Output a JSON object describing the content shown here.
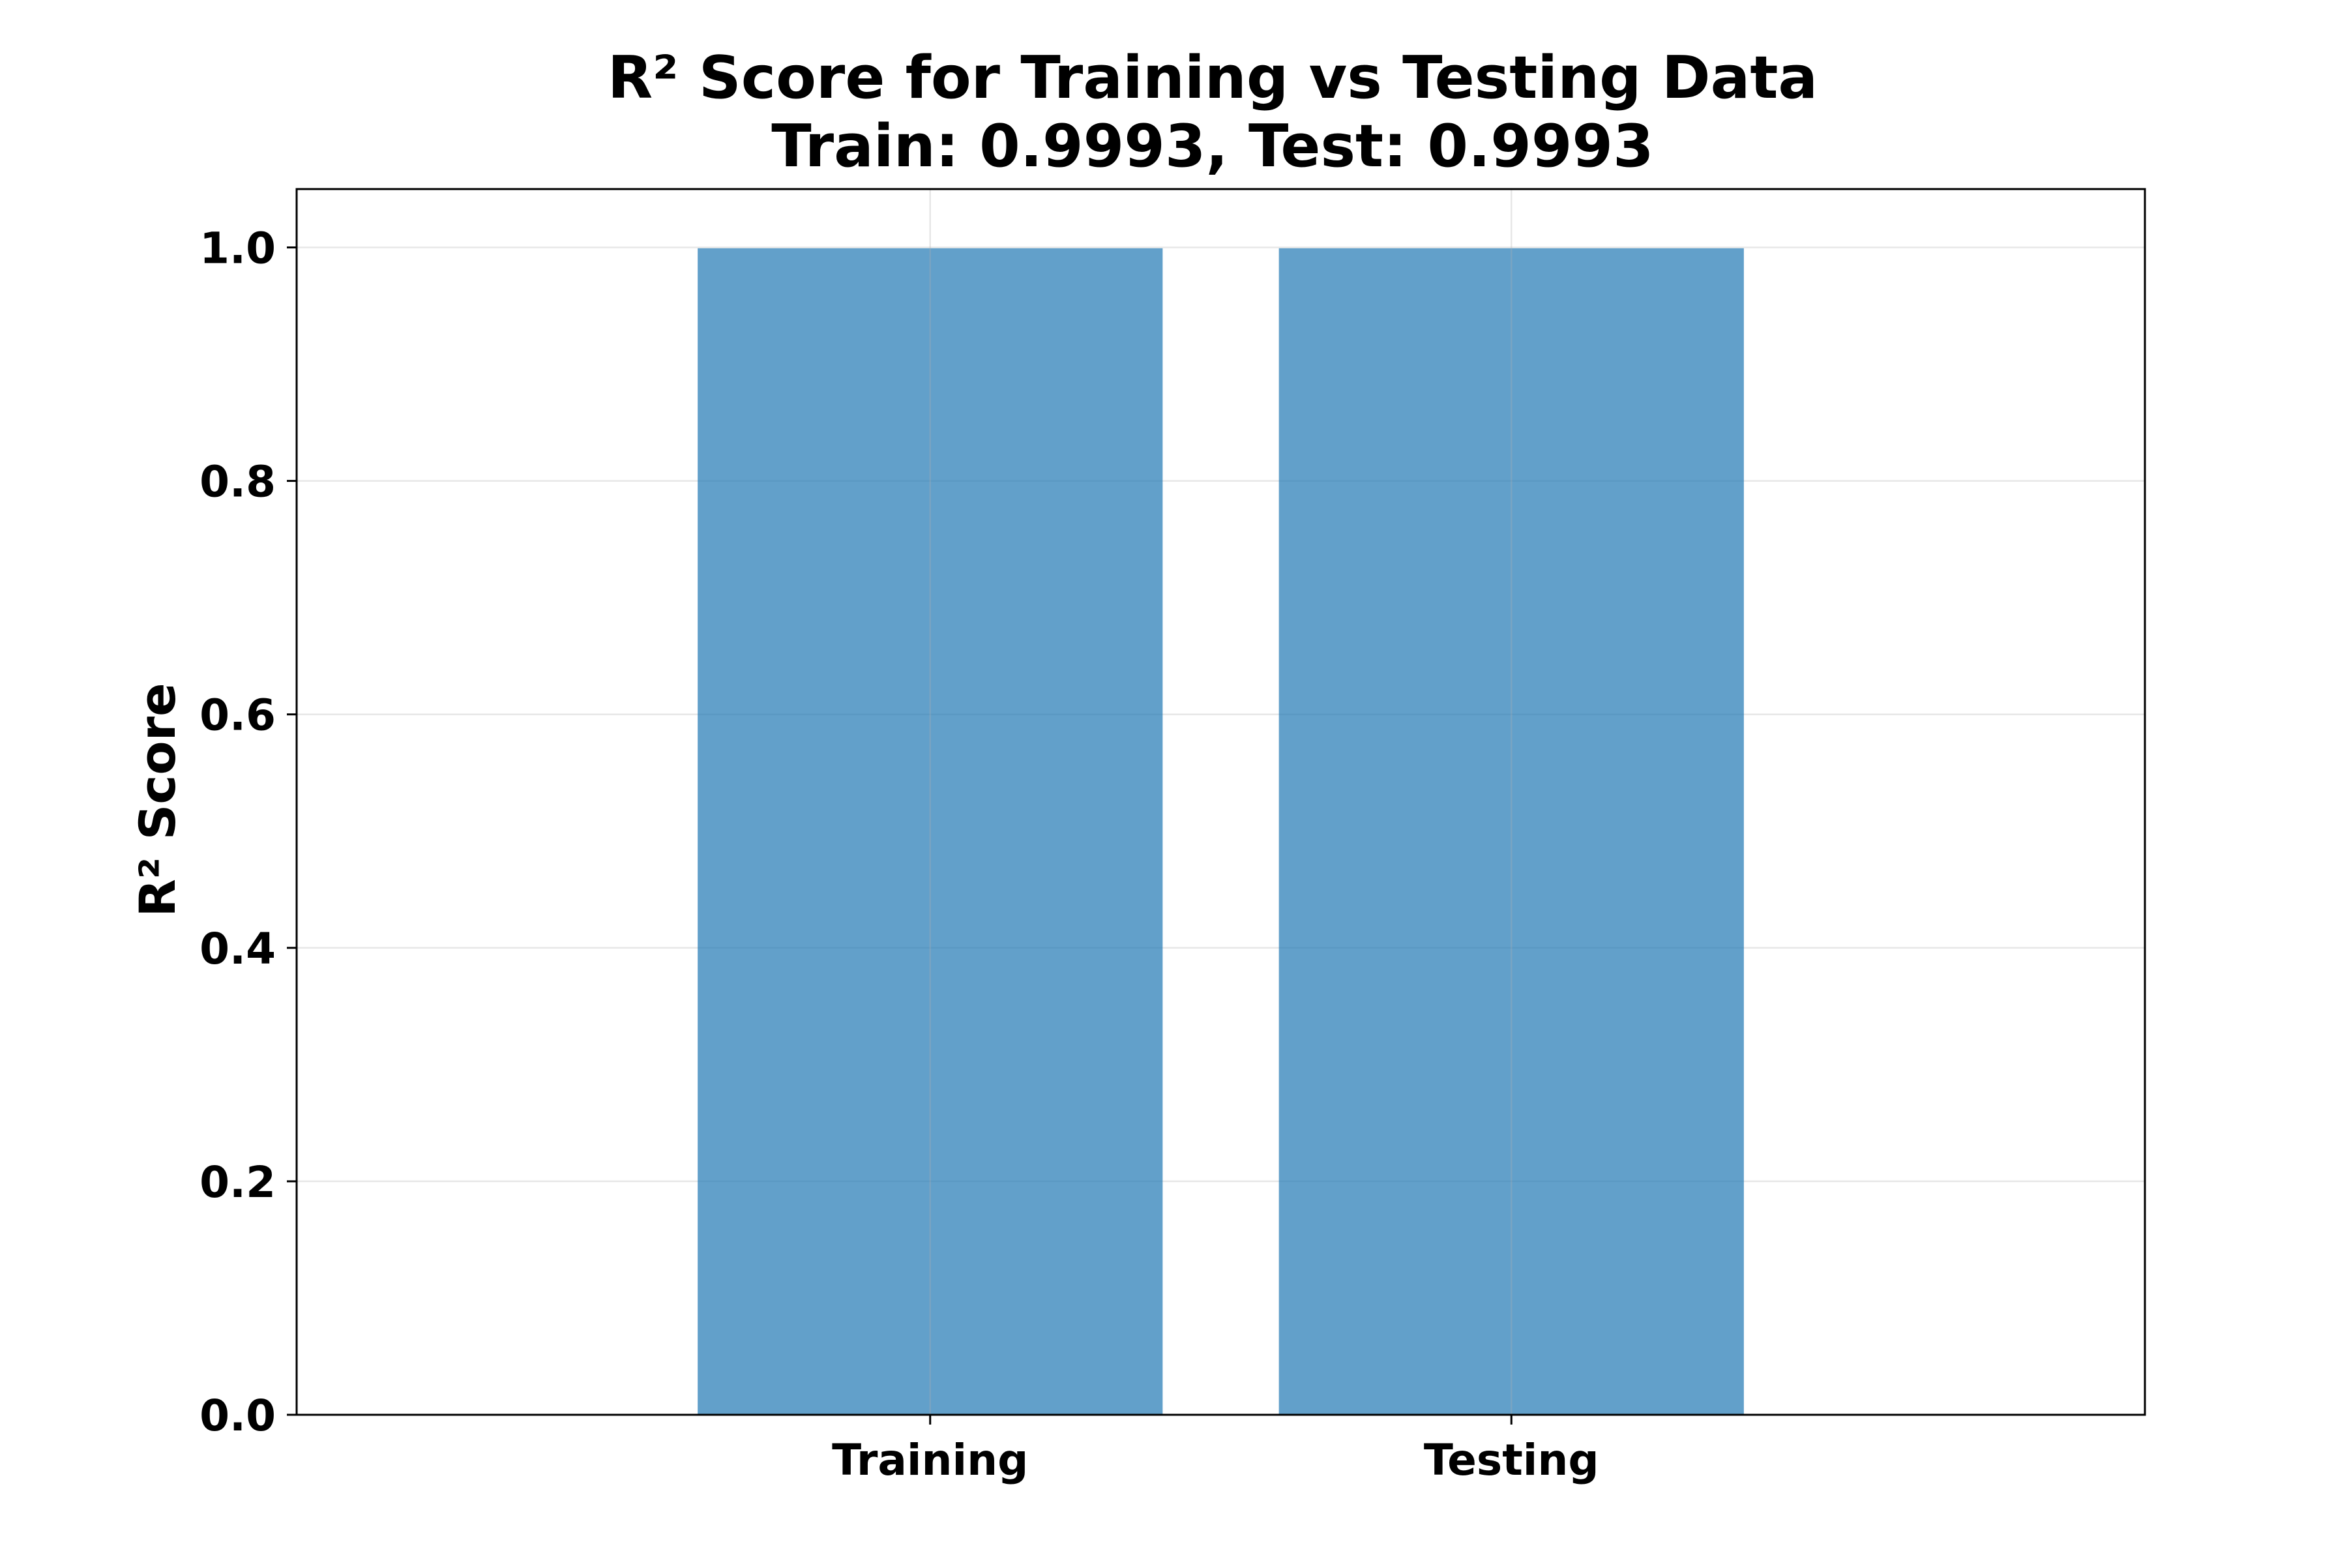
{
  "chart_data": {
    "type": "bar",
    "title": "R² Score for Training vs Testing Data",
    "subtitle": "Train: 0.9993, Test: 0.9993",
    "xlabel": "",
    "ylabel": "R² Score",
    "categories": [
      "Training",
      "Testing"
    ],
    "values": [
      0.9993,
      0.9993
    ],
    "ylim": [
      0,
      1.05
    ],
    "yticks": [
      0.0,
      0.2,
      0.4,
      0.6,
      0.8,
      1.0
    ],
    "ytick_labels": [
      "0.0",
      "0.2",
      "0.4",
      "0.6",
      "0.8",
      "1.0"
    ],
    "grid": true,
    "legend": "none",
    "bar_color": "#1f77b4",
    "bar_opacity": 0.7
  }
}
